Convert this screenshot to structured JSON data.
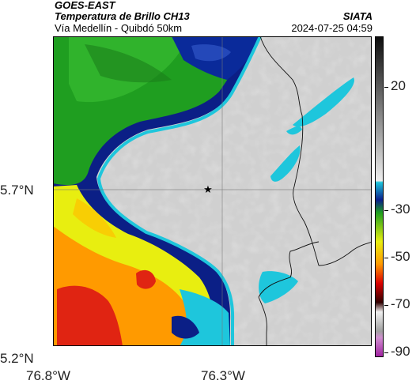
{
  "header": {
    "satellite": "GOES-EAST",
    "product": "Temperatura de Brillo CH13",
    "route": "Vía Medellín - Quibdó 50km",
    "agency": "SIATA",
    "datetime": "2024-07-25 04:59"
  },
  "axes": {
    "lat_ticks": [
      "5.7°N",
      "5.2°N"
    ],
    "lon_ticks": [
      "76.8°W",
      "76.3°W"
    ]
  },
  "colorbar": {
    "ticks": [
      "20",
      "-30",
      "-50",
      "-70",
      "-90"
    ],
    "colors": [
      "#1a1a1a",
      "#808080",
      "#d8d8d8",
      "#1eb4d2",
      "#0a1e8c",
      "#14a014",
      "#f0f000",
      "#ff8c00",
      "#dc0000",
      "#320000",
      "#c8c8c8",
      "#b428b4"
    ]
  },
  "map": {
    "marker": "star-icon",
    "palette": {
      "cloud_gray": "#d2d2d2",
      "cyan": "#1ec8dc",
      "navy": "#0a2080",
      "green": "#1ea01e",
      "yellow": "#f0f000",
      "orange": "#ff9600",
      "red": "#e02010"
    }
  }
}
